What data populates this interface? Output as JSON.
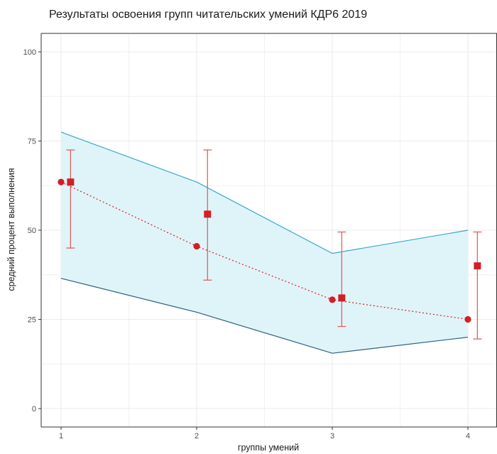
{
  "chart_data": {
    "type": "line",
    "title": "Результаты освоения групп читательских умений КДР6 2019",
    "xlabel": "группы умений",
    "ylabel": "средний процент выполнения",
    "x_ticks": [
      1,
      2,
      3,
      4
    ],
    "y_ticks": [
      0,
      25,
      50,
      75,
      100
    ],
    "xlim": [
      0.9,
      4.1
    ],
    "ylim": [
      -5,
      100
    ],
    "grid": true,
    "band": {
      "x": [
        1,
        2,
        3,
        4
      ],
      "upper": [
        77.5,
        63.5,
        43.5,
        50
      ],
      "lower": [
        36.5,
        27,
        15.5,
        20
      ]
    },
    "circles": {
      "x": [
        1,
        2,
        3,
        4
      ],
      "values": [
        63.5,
        45.5,
        30.5,
        25
      ]
    },
    "squares": {
      "x": [
        1.07,
        2.08,
        3.07,
        4.07
      ],
      "values": [
        63.5,
        54.5,
        31,
        40
      ],
      "err_upper": [
        72.5,
        72.5,
        49.5,
        49.5
      ],
      "err_lower": [
        45,
        36,
        23,
        19.5
      ]
    },
    "colors": {
      "band_fill": "#dff4f8",
      "band_upper_line": "#3ca7c8",
      "band_lower_line": "#2c5f80",
      "points": "#d21f26",
      "errorbar": "#e06060",
      "grid": "#ebebeb"
    }
  }
}
